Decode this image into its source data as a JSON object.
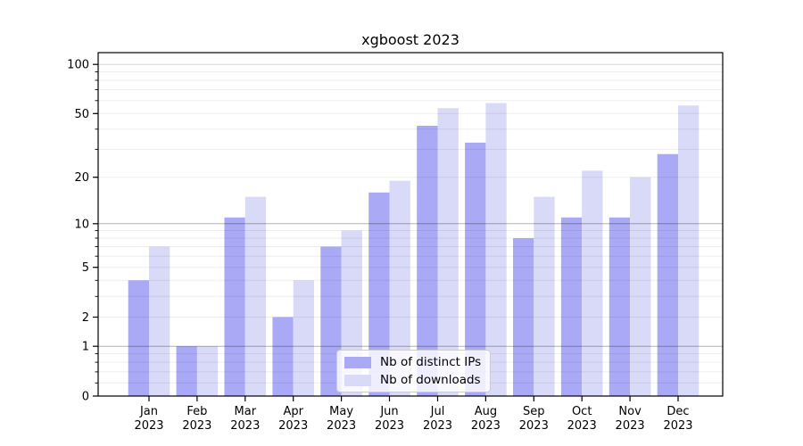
{
  "chart_data": {
    "type": "bar",
    "title": "xgboost 2023",
    "categories": [
      "Jan 2023",
      "Feb 2023",
      "Mar 2023",
      "Apr 2023",
      "May 2023",
      "Jun 2023",
      "Jul 2023",
      "Aug 2023",
      "Sep 2023",
      "Oct 2023",
      "Nov 2023",
      "Dec 2023"
    ],
    "series": [
      {
        "name": "Nb of distinct IPs",
        "color": "#a9a9f6",
        "values": [
          4,
          1,
          11,
          2,
          7,
          16,
          42,
          33,
          8,
          11,
          11,
          28
        ]
      },
      {
        "name": "Nb of downloads",
        "color": "#d9d9f8",
        "values": [
          7,
          1,
          15,
          4,
          9,
          19,
          54,
          58,
          15,
          22,
          20,
          56
        ]
      }
    ],
    "xlabel": "",
    "ylabel": "",
    "yscale": "symlog",
    "ylim": [
      0,
      118
    ],
    "yticks": [
      0,
      1,
      2,
      5,
      10,
      20,
      50,
      100
    ],
    "minor_yticks": [
      0.2,
      0.4,
      0.6,
      0.8,
      2,
      3,
      4,
      5,
      6,
      7,
      8,
      9,
      20,
      30,
      40,
      50,
      60,
      70,
      80,
      90
    ],
    "decade_gridlines": [
      1,
      10,
      100
    ],
    "grid": "on",
    "legend_position": "lower center",
    "colors": {
      "background": "#ffffff",
      "axis": "#000000",
      "grid_major": "rgba(0,0,0,0.30)",
      "grid_decade_top": "rgba(0,0,0,0.16)",
      "grid_minor": "rgba(0,0,0,0.07)"
    }
  }
}
